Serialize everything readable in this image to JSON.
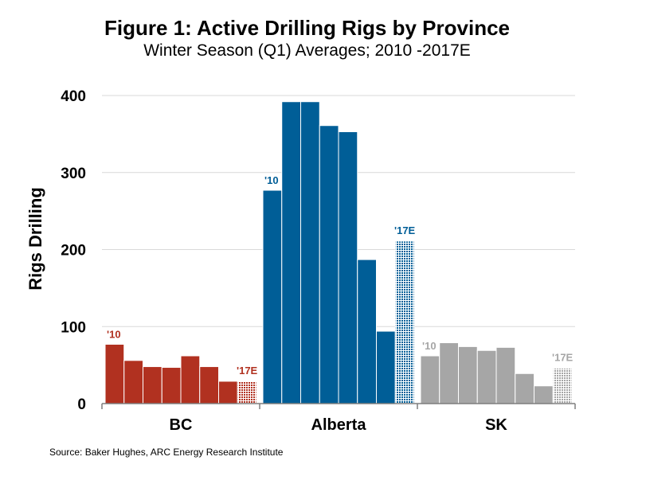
{
  "chart_data": {
    "type": "bar",
    "title": "Figure 1: Active Drilling Rigs by Province",
    "subtitle": "Winter Season (Q1) Averages; 2010 -2017E",
    "ylabel": "Rigs Drilling",
    "xlabel": "",
    "ylim": [
      0,
      400
    ],
    "yticks": [
      0,
      100,
      200,
      300,
      400
    ],
    "grid": true,
    "groups": [
      {
        "name": "BC",
        "color": "#b13120",
        "values": [
          77,
          56,
          48,
          47,
          62,
          48,
          29,
          29
        ],
        "start_label": "'10",
        "end_label": "'17E"
      },
      {
        "name": "Alberta",
        "color": "#005e97",
        "values": [
          277,
          392,
          392,
          361,
          353,
          187,
          94,
          211
        ],
        "start_label": "'10",
        "end_label": "'17E"
      },
      {
        "name": "SK",
        "color": "#a6a6a6",
        "values": [
          62,
          79,
          74,
          69,
          73,
          39,
          23,
          46
        ],
        "start_label": "'10",
        "end_label": "'17E"
      }
    ],
    "last_bar_estimate": true
  },
  "source": "Source: Baker Hughes, ARC Energy Research Institute"
}
